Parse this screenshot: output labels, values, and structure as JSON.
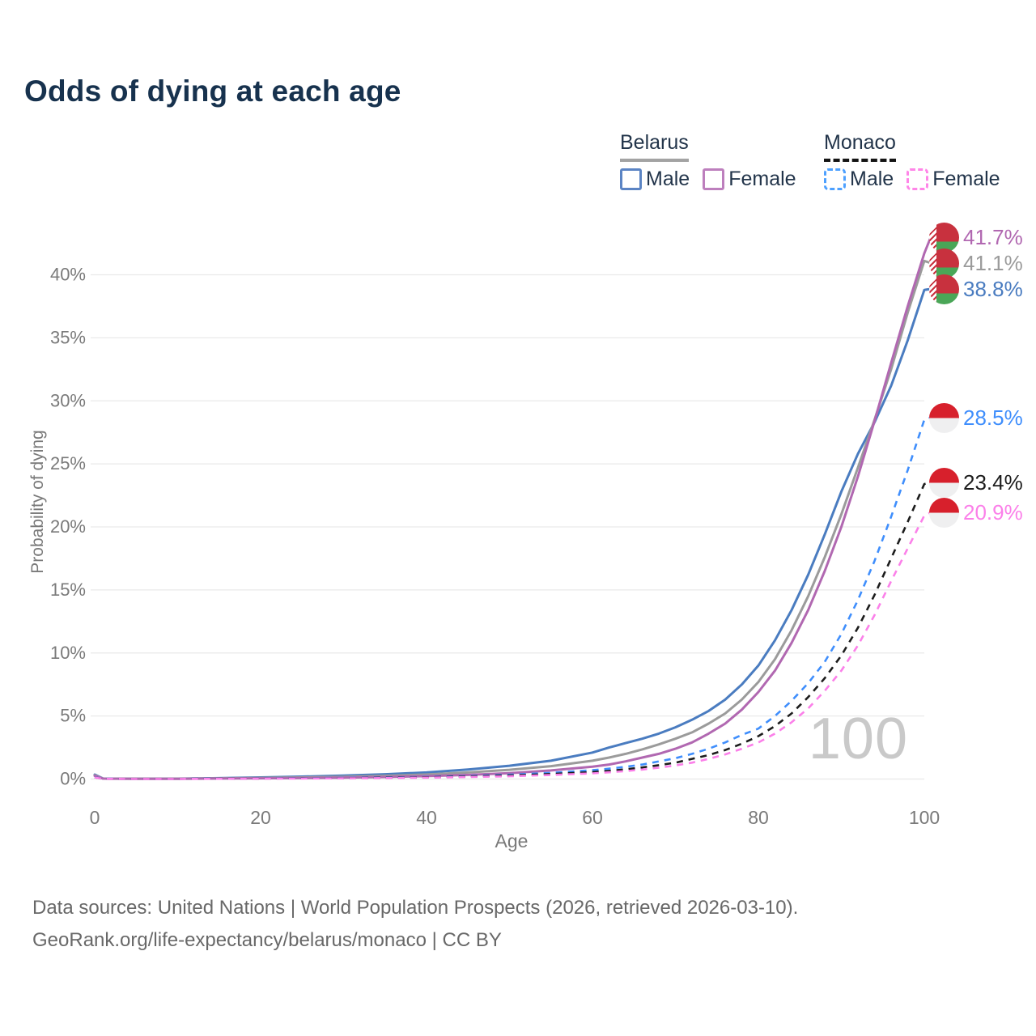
{
  "title": "Odds of dying at each age",
  "legend": {
    "groups": [
      {
        "country": "Belarus",
        "style": "solid",
        "items": [
          {
            "label": "Male"
          },
          {
            "label": "Female"
          }
        ]
      },
      {
        "country": "Monaco",
        "style": "dashed",
        "items": [
          {
            "label": "Male"
          },
          {
            "label": "Female"
          }
        ]
      }
    ]
  },
  "watermark": "100",
  "footer": {
    "line1": "Data sources: United Nations | World Population Prospects (2026, retrieved 2026-03-10).",
    "line2": "GeoRank.org/life-expectancy/belarus/monaco | CC BY"
  },
  "colors": {
    "title": "#17324e",
    "legend_text": "#22344a",
    "belarus_underline": "#a3a3a3",
    "monaco_underline": "#141414",
    "axis_text": "#7a7a7a",
    "gridline": "#e9e9e9",
    "watermark": "#c9c9c9",
    "footer_text": "#686868"
  },
  "chart_data": {
    "type": "line",
    "title": "Odds of dying at each age",
    "xlabel": "Age",
    "ylabel": "Probability of dying",
    "xlim": [
      0,
      100
    ],
    "ylim": [
      0,
      43
    ],
    "grid": "horizontal",
    "legend_position": "top-right",
    "xticks": [
      0,
      20,
      40,
      60,
      80,
      100
    ],
    "yticks": [
      "0%",
      "5%",
      "10%",
      "15%",
      "20%",
      "25%",
      "30%",
      "35%",
      "40%"
    ],
    "x": [
      0,
      1,
      5,
      10,
      15,
      20,
      25,
      30,
      35,
      40,
      45,
      50,
      55,
      60,
      62,
      64,
      66,
      68,
      70,
      72,
      74,
      76,
      78,
      80,
      82,
      84,
      86,
      88,
      90,
      92,
      94,
      96,
      98,
      100
    ],
    "series": [
      {
        "name": "Belarus Female",
        "country": "Belarus",
        "sex": "Female",
        "style": "solid",
        "color": "#b168b1",
        "flag": "belarus",
        "end_label": "41.7%",
        "y": [
          0.25,
          0.03,
          0.02,
          0.02,
          0.04,
          0.06,
          0.08,
          0.11,
          0.16,
          0.23,
          0.33,
          0.47,
          0.68,
          0.98,
          1.15,
          1.4,
          1.7,
          2.0,
          2.4,
          2.9,
          3.6,
          4.4,
          5.5,
          6.9,
          8.6,
          10.8,
          13.4,
          16.5,
          20.0,
          24.0,
          28.4,
          33.0,
          37.5,
          41.7
        ]
      },
      {
        "name": "Belarus Combined",
        "country": "Belarus",
        "sex": "Both",
        "style": "solid",
        "color": "#9b9b9b",
        "flag": "belarus",
        "end_label": "41.1%",
        "y": [
          0.3,
          0.035,
          0.025,
          0.025,
          0.055,
          0.09,
          0.13,
          0.18,
          0.26,
          0.36,
          0.52,
          0.73,
          1.02,
          1.45,
          1.7,
          2.0,
          2.35,
          2.75,
          3.2,
          3.7,
          4.4,
          5.2,
          6.3,
          7.7,
          9.5,
          11.8,
          14.5,
          17.6,
          21.0,
          24.7,
          28.5,
          32.5,
          37.0,
          41.1
        ]
      },
      {
        "name": "Belarus Male",
        "country": "Belarus",
        "sex": "Male",
        "style": "solid",
        "color": "#4a7cc0",
        "flag": "belarus",
        "end_label": "38.8%",
        "y": [
          0.35,
          0.04,
          0.03,
          0.03,
          0.07,
          0.13,
          0.19,
          0.27,
          0.38,
          0.52,
          0.75,
          1.05,
          1.45,
          2.1,
          2.5,
          2.85,
          3.2,
          3.6,
          4.1,
          4.7,
          5.4,
          6.3,
          7.5,
          9.0,
          11.0,
          13.4,
          16.2,
          19.4,
          22.8,
          25.8,
          28.3,
          31.2,
          34.8,
          38.8
        ]
      },
      {
        "name": "Monaco Male",
        "country": "Monaco",
        "sex": "Male",
        "style": "dashed",
        "color": "#3f8efc",
        "flag": "monaco",
        "end_label": "28.5%",
        "y": [
          0.15,
          0.02,
          0.01,
          0.01,
          0.03,
          0.05,
          0.07,
          0.09,
          0.12,
          0.17,
          0.24,
          0.34,
          0.49,
          0.7,
          0.82,
          0.97,
          1.15,
          1.4,
          1.65,
          2.0,
          2.4,
          2.9,
          3.5,
          4.0,
          5.0,
          6.2,
          7.6,
          9.3,
          11.5,
          14.2,
          17.3,
          20.8,
          24.5,
          28.5
        ]
      },
      {
        "name": "Monaco Combined",
        "country": "Monaco",
        "sex": "Both",
        "style": "dashed",
        "color": "#1c1c1c",
        "flag": "monaco",
        "end_label": "23.4%",
        "y": [
          0.13,
          0.015,
          0.01,
          0.01,
          0.025,
          0.04,
          0.055,
          0.07,
          0.1,
          0.14,
          0.2,
          0.28,
          0.4,
          0.55,
          0.65,
          0.77,
          0.92,
          1.1,
          1.3,
          1.6,
          1.9,
          2.3,
          2.8,
          3.4,
          4.2,
          5.2,
          6.5,
          8.0,
          9.8,
          12.0,
          14.6,
          17.5,
          20.4,
          23.4
        ]
      },
      {
        "name": "Monaco Female",
        "country": "Monaco",
        "sex": "Female",
        "style": "dashed",
        "color": "#fb80e9",
        "flag": "monaco",
        "end_label": "20.9%",
        "y": [
          0.12,
          0.012,
          0.008,
          0.008,
          0.02,
          0.03,
          0.04,
          0.055,
          0.08,
          0.11,
          0.16,
          0.22,
          0.32,
          0.45,
          0.53,
          0.63,
          0.75,
          0.9,
          1.08,
          1.3,
          1.6,
          1.95,
          2.4,
          2.9,
          3.6,
          4.5,
          5.6,
          7.0,
          8.6,
          10.6,
          13.0,
          15.7,
          18.3,
          20.9
        ]
      }
    ]
  }
}
